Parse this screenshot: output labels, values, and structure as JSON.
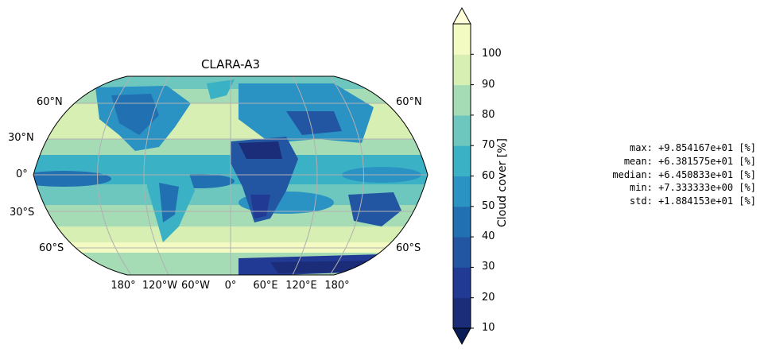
{
  "map": {
    "title": "CLARA-A3",
    "projection": "Robinson",
    "lat_labels_left": [
      "60°N",
      "30°N",
      "0°",
      "30°S",
      "60°S"
    ],
    "lat_labels_right": [
      "60°N",
      "60°S"
    ],
    "lon_labels": [
      "180°",
      "120°W",
      "60°W",
      "0°",
      "60°E",
      "120°E",
      "180°"
    ],
    "gridlines": true,
    "gridline_color": "#b0b0b0"
  },
  "colorbar": {
    "label": "Cloud cover [%]",
    "ticks": [
      "10",
      "20",
      "30",
      "40",
      "50",
      "60",
      "70",
      "80",
      "90",
      "100"
    ],
    "extend": "both",
    "colors": [
      "#1b2d78",
      "#213a94",
      "#2256a3",
      "#2170b2",
      "#2a93c3",
      "#3ab1c5",
      "#6dc7be",
      "#a6dcb5",
      "#d7efb3",
      "#f4fbc2"
    ],
    "under_color": "#081d58",
    "over_color": "#ffffd9"
  },
  "stats": {
    "max": "max: +9.854167e+01 [%]",
    "mean": "mean: +6.381575e+01 [%]",
    "median": "median: +6.450833e+01 [%]",
    "min": "min: +7.333333e+00 [%]",
    "std": "std: +1.884153e+01 [%]"
  }
}
